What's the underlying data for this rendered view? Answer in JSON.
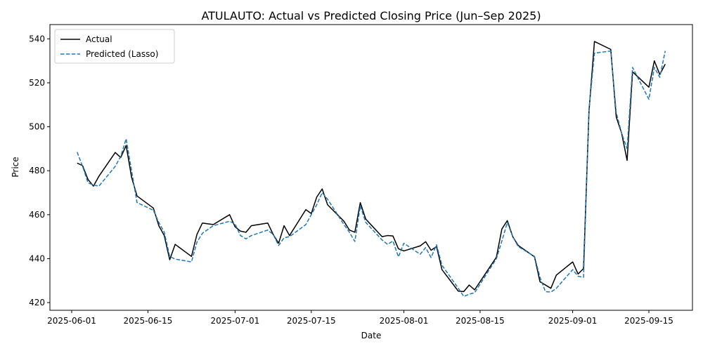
{
  "chart_data": {
    "type": "line",
    "title": "ATULAUTO: Actual vs Predicted Closing Price (Jun–Sep 2025)",
    "xlabel": "Date",
    "ylabel": "Price",
    "xlim": [
      "2025-05-28",
      "2025-09-23"
    ],
    "ylim": [
      416.5,
      546.5
    ],
    "x_ticks": [
      "2025-06-01",
      "2025-06-15",
      "2025-07-01",
      "2025-07-15",
      "2025-08-01",
      "2025-08-15",
      "2025-09-01",
      "2025-09-15"
    ],
    "y_ticks": [
      420,
      440,
      460,
      480,
      500,
      520,
      540
    ],
    "grid": false,
    "legend_position": "upper-left",
    "series": [
      {
        "name": "Actual",
        "color": "#000000",
        "dash": "solid",
        "points": [
          [
            "2025-06-02",
            483.5
          ],
          [
            "2025-06-03",
            482.3
          ],
          [
            "2025-06-04",
            476.0
          ],
          [
            "2025-06-05",
            473.0
          ],
          [
            "2025-06-06",
            477.5
          ],
          [
            "2025-06-09",
            488.3
          ],
          [
            "2025-06-10",
            486.0
          ],
          [
            "2025-06-11",
            491.5
          ],
          [
            "2025-06-12",
            477.0
          ],
          [
            "2025-06-13",
            468.5
          ],
          [
            "2025-06-16",
            463.0
          ],
          [
            "2025-06-17",
            455.0
          ],
          [
            "2025-06-18",
            450.5
          ],
          [
            "2025-06-19",
            439.5
          ],
          [
            "2025-06-20",
            446.5
          ],
          [
            "2025-06-23",
            441.0
          ],
          [
            "2025-06-24",
            451.0
          ],
          [
            "2025-06-25",
            456.2
          ],
          [
            "2025-06-27",
            455.5
          ],
          [
            "2025-06-30",
            460.0
          ],
          [
            "2025-07-01",
            454.5
          ],
          [
            "2025-07-02",
            452.5
          ],
          [
            "2025-07-03",
            452.0
          ],
          [
            "2025-07-04",
            455.0
          ],
          [
            "2025-07-07",
            456.2
          ],
          [
            "2025-07-08",
            451.0
          ],
          [
            "2025-07-09",
            447.0
          ],
          [
            "2025-07-10",
            455.0
          ],
          [
            "2025-07-11",
            450.5
          ],
          [
            "2025-07-14",
            462.3
          ],
          [
            "2025-07-15",
            460.5
          ],
          [
            "2025-07-16",
            468.0
          ],
          [
            "2025-07-17",
            471.7
          ],
          [
            "2025-07-18",
            464.5
          ],
          [
            "2025-07-21",
            457.0
          ],
          [
            "2025-07-22",
            453.0
          ],
          [
            "2025-07-23",
            452.0
          ],
          [
            "2025-07-24",
            465.5
          ],
          [
            "2025-07-25",
            458.0
          ],
          [
            "2025-07-28",
            450.0
          ],
          [
            "2025-07-29",
            450.5
          ],
          [
            "2025-07-30",
            450.3
          ],
          [
            "2025-07-31",
            444.5
          ],
          [
            "2025-08-01",
            443.5
          ],
          [
            "2025-08-04",
            445.8
          ],
          [
            "2025-08-05",
            447.7
          ],
          [
            "2025-08-06",
            443.8
          ],
          [
            "2025-08-07",
            445.5
          ],
          [
            "2025-08-08",
            435.0
          ],
          [
            "2025-08-11",
            425.2
          ],
          [
            "2025-08-12",
            425.0
          ],
          [
            "2025-08-13",
            428.0
          ],
          [
            "2025-08-14",
            425.8
          ],
          [
            "2025-08-18",
            440.7
          ],
          [
            "2025-08-19",
            453.5
          ],
          [
            "2025-08-20",
            457.3
          ],
          [
            "2025-08-21",
            450.0
          ],
          [
            "2025-08-22",
            446.0
          ],
          [
            "2025-08-25",
            440.8
          ],
          [
            "2025-08-26",
            429.5
          ],
          [
            "2025-08-28",
            426.5
          ],
          [
            "2025-08-29",
            432.5
          ],
          [
            "2025-09-01",
            438.5
          ],
          [
            "2025-09-02",
            433.0
          ],
          [
            "2025-09-03",
            435.5
          ],
          [
            "2025-09-04",
            507.0
          ],
          [
            "2025-09-05",
            538.8
          ],
          [
            "2025-09-08",
            535.2
          ],
          [
            "2025-09-09",
            504.5
          ],
          [
            "2025-09-10",
            497.0
          ],
          [
            "2025-09-11",
            484.7
          ],
          [
            "2025-09-12",
            525.0
          ],
          [
            "2025-09-15",
            518.0
          ],
          [
            "2025-09-16",
            530.0
          ],
          [
            "2025-09-17",
            523.8
          ],
          [
            "2025-09-18",
            528.5
          ]
        ]
      },
      {
        "name": "Predicted (Lasso)",
        "color": "#1f77b4",
        "dash": "dashed",
        "points": [
          [
            "2025-06-02",
            488.5
          ],
          [
            "2025-06-03",
            482.0
          ],
          [
            "2025-06-04",
            474.5
          ],
          [
            "2025-06-05",
            473.5
          ],
          [
            "2025-06-06",
            473.0
          ],
          [
            "2025-06-09",
            482.0
          ],
          [
            "2025-06-10",
            486.5
          ],
          [
            "2025-06-11",
            494.5
          ],
          [
            "2025-06-12",
            480.0
          ],
          [
            "2025-06-13",
            465.5
          ],
          [
            "2025-06-16",
            462.0
          ],
          [
            "2025-06-17",
            456.5
          ],
          [
            "2025-06-18",
            452.0
          ],
          [
            "2025-06-19",
            441.0
          ],
          [
            "2025-06-20",
            439.8
          ],
          [
            "2025-06-23",
            438.5
          ],
          [
            "2025-06-24",
            447.5
          ],
          [
            "2025-06-25",
            451.5
          ],
          [
            "2025-06-27",
            455.0
          ],
          [
            "2025-06-30",
            457.0
          ],
          [
            "2025-07-01",
            455.8
          ],
          [
            "2025-07-02",
            450.5
          ],
          [
            "2025-07-03",
            449.0
          ],
          [
            "2025-07-04",
            450.5
          ],
          [
            "2025-07-07",
            453.0
          ],
          [
            "2025-07-08",
            451.0
          ],
          [
            "2025-07-09",
            446.0
          ],
          [
            "2025-07-10",
            449.5
          ],
          [
            "2025-07-11",
            450.0
          ],
          [
            "2025-07-14",
            455.5
          ],
          [
            "2025-07-15",
            460.0
          ],
          [
            "2025-07-16",
            464.5
          ],
          [
            "2025-07-17",
            470.0
          ],
          [
            "2025-07-18",
            467.0
          ],
          [
            "2025-07-21",
            455.5
          ],
          [
            "2025-07-22",
            452.0
          ],
          [
            "2025-07-23",
            447.8
          ],
          [
            "2025-07-24",
            464.0
          ],
          [
            "2025-07-25",
            456.5
          ],
          [
            "2025-07-28",
            448.5
          ],
          [
            "2025-07-29",
            446.5
          ],
          [
            "2025-07-30",
            448.0
          ],
          [
            "2025-07-31",
            440.8
          ],
          [
            "2025-08-01",
            447.0
          ],
          [
            "2025-08-04",
            442.0
          ],
          [
            "2025-08-05",
            445.0
          ],
          [
            "2025-08-06",
            440.5
          ],
          [
            "2025-08-07",
            446.3
          ],
          [
            "2025-08-08",
            437.0
          ],
          [
            "2025-08-11",
            426.5
          ],
          [
            "2025-08-12",
            422.8
          ],
          [
            "2025-08-13",
            423.8
          ],
          [
            "2025-08-14",
            424.5
          ],
          [
            "2025-08-18",
            440.0
          ],
          [
            "2025-08-19",
            448.0
          ],
          [
            "2025-08-20",
            456.5
          ],
          [
            "2025-08-21",
            450.0
          ],
          [
            "2025-08-22",
            445.5
          ],
          [
            "2025-08-25",
            441.0
          ],
          [
            "2025-08-26",
            431.5
          ],
          [
            "2025-08-27",
            425.0
          ],
          [
            "2025-08-28",
            424.8
          ],
          [
            "2025-08-29",
            426.5
          ],
          [
            "2025-09-01",
            435.0
          ],
          [
            "2025-09-02",
            432.0
          ],
          [
            "2025-09-03",
            431.5
          ],
          [
            "2025-09-04",
            508.0
          ],
          [
            "2025-09-05",
            533.5
          ],
          [
            "2025-09-08",
            534.5
          ],
          [
            "2025-09-09",
            506.5
          ],
          [
            "2025-09-10",
            497.0
          ],
          [
            "2025-09-11",
            490.0
          ],
          [
            "2025-09-12",
            527.0
          ],
          [
            "2025-09-15",
            512.5
          ],
          [
            "2025-09-16",
            527.0
          ],
          [
            "2025-09-17",
            522.5
          ],
          [
            "2025-09-18",
            534.5
          ]
        ]
      }
    ]
  }
}
